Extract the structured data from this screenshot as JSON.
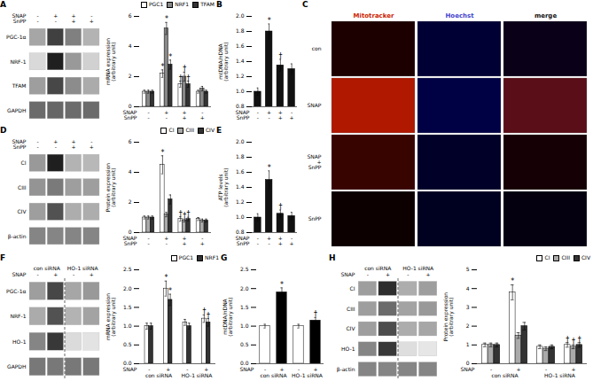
{
  "chart_data": [
    {
      "type": "gel",
      "title": "A",
      "rows": [
        "PGC-1α",
        "NRF-1",
        "TFAM",
        "GAPDH"
      ],
      "lanes": [
        {
          "name": "SNAP",
          "labels": [
            "-",
            "+",
            "+",
            "-"
          ]
        },
        {
          "name": "SnPP",
          "labels": [
            "-",
            "-",
            "+",
            "+"
          ]
        }
      ],
      "intensity": [
        [
          0.35,
          0.75,
          0.5,
          0.3
        ],
        [
          0.15,
          0.88,
          0.4,
          0.18
        ],
        [
          0.38,
          0.72,
          0.45,
          0.33
        ],
        [
          0.58,
          0.6,
          0.58,
          0.58
        ]
      ]
    },
    {
      "type": "bar",
      "x_label_rows": [
        {
          "name": "SNAP",
          "labels": [
            "-",
            "+",
            "+",
            "-"
          ]
        },
        {
          "name": "SnPP",
          "labels": [
            "-",
            "-",
            "+",
            "+"
          ]
        }
      ],
      "ylabel": "mRNA expression\n(arbitrary unit)",
      "ylim": [
        0,
        6
      ],
      "yticks": [
        0,
        2,
        4,
        6
      ],
      "legend": "upper right",
      "series": [
        {
          "name": "PGC1",
          "color": "#ffffff",
          "values": [
            1,
            2.2,
            1.5,
            1
          ],
          "errors": [
            0.1,
            0.25,
            0.2,
            0.1
          ],
          "annotations": [
            null,
            "*",
            "†",
            null
          ]
        },
        {
          "name": "NRF1",
          "color": "#888888",
          "values": [
            1,
            5.2,
            2,
            1.2
          ],
          "errors": [
            0.1,
            0.4,
            0.3,
            0.15
          ],
          "annotations": [
            null,
            "*",
            "†",
            null
          ]
        },
        {
          "name": "TFAM",
          "color": "#333333",
          "values": [
            1,
            2.8,
            1.5,
            1
          ],
          "errors": [
            0.1,
            0.3,
            0.2,
            0.1
          ],
          "annotations": [
            null,
            "*",
            "†",
            null
          ]
        }
      ]
    },
    {
      "type": "bar",
      "title": "B",
      "x_label_rows": [
        {
          "name": "SNAP",
          "labels": [
            "-",
            "+",
            "+",
            "-"
          ]
        },
        {
          "name": "SnPP",
          "labels": [
            "-",
            "-",
            "+",
            "+"
          ]
        }
      ],
      "ylabel": "mtDNA/nDNA\n(arbitrary unit)",
      "ylim": [
        0.8,
        2
      ],
      "yticks": [
        0.8,
        {
          "value": 1,
          "label": "1.0"
        },
        1.2,
        1.4,
        1.6,
        1.8,
        {
          "value": 2,
          "label": "2.0"
        }
      ],
      "series": [
        {
          "color": "#111111",
          "values": [
            1,
            1.8,
            1.35,
            1.3
          ],
          "errors": [
            0.05,
            0.1,
            0.08,
            0.07
          ],
          "annotations": [
            null,
            "*",
            "†",
            null
          ]
        }
      ]
    },
    {
      "type": "image_grid",
      "title": "C",
      "columns": [
        "Mitotracker",
        "Hoechst",
        "merge"
      ],
      "column_colors": [
        "#cc2200",
        "#4444cc",
        "#111111"
      ],
      "rows": [
        "con",
        "SNAP",
        "SNAP\n+\nSnPP",
        "SnPP"
      ],
      "cell_colors": [
        [
          "#1c0000",
          "#000035",
          "#0a0018"
        ],
        [
          "#b01800",
          "#000045",
          "#5a0e18"
        ],
        [
          "#380400",
          "#000028",
          "#150005"
        ],
        [
          "#0c0000",
          "#000020",
          "#040010"
        ]
      ]
    },
    {
      "type": "gel",
      "title": "D",
      "rows": [
        "CI",
        "CIII",
        "CIV",
        "β-actin"
      ],
      "lanes": [
        {
          "name": "SNAP",
          "labels": [
            "-",
            "+",
            "+",
            "-"
          ]
        },
        {
          "name": "SnPP",
          "labels": [
            "-",
            "-",
            "+",
            "+"
          ]
        }
      ],
      "intensity": [
        [
          0.4,
          0.88,
          0.3,
          0.28
        ],
        [
          0.42,
          0.52,
          0.38,
          0.38
        ],
        [
          0.38,
          0.68,
          0.32,
          0.32
        ],
        [
          0.48,
          0.48,
          0.48,
          0.48
        ]
      ]
    },
    {
      "type": "bar",
      "x_label_rows": [
        {
          "name": "SNAP",
          "labels": [
            "-",
            "+",
            "+",
            "-"
          ]
        },
        {
          "name": "SnPP",
          "labels": [
            "-",
            "-",
            "+",
            "+"
          ]
        }
      ],
      "ylabel": "Protein expression\n(arbitrary unit)",
      "ylim": [
        0,
        6
      ],
      "yticks": [
        0,
        2,
        4,
        6
      ],
      "legend": "upper right",
      "series": [
        {
          "name": "CI",
          "color": "#ffffff",
          "values": [
            1,
            4.5,
            0.9,
            0.9
          ],
          "errors": [
            0.1,
            0.6,
            0.15,
            0.1
          ],
          "annotations": [
            null,
            "*",
            "†",
            null
          ]
        },
        {
          "name": "CIII",
          "color": "#aaaaaa",
          "values": [
            1,
            1.2,
            0.8,
            0.8
          ],
          "errors": [
            0.1,
            0.15,
            0.1,
            0.1
          ],
          "annotations": [
            null,
            null,
            "†",
            null
          ]
        },
        {
          "name": "CIV",
          "color": "#333333",
          "values": [
            1,
            2.2,
            0.9,
            0.8
          ],
          "errors": [
            0.1,
            0.3,
            0.12,
            0.1
          ],
          "annotations": [
            null,
            null,
            "†",
            null
          ]
        }
      ]
    },
    {
      "type": "bar",
      "title": "E",
      "x_label_rows": [
        {
          "name": "SNAP",
          "labels": [
            "-",
            "+",
            "+",
            "-"
          ]
        },
        {
          "name": "SnPP",
          "labels": [
            "-",
            "-",
            "+",
            "+"
          ]
        }
      ],
      "ylabel": "ATP levels\n(arbitrary unit)",
      "ylim": [
        0.8,
        2
      ],
      "yticks": [
        0.8,
        {
          "value": 1,
          "label": "1.0"
        },
        1.2,
        1.4,
        1.6,
        1.8,
        {
          "value": 2,
          "label": "2.0"
        }
      ],
      "series": [
        {
          "color": "#111111",
          "values": [
            1,
            1.5,
            1.05,
            1.02
          ],
          "errors": [
            0.05,
            0.12,
            0.05,
            0.05
          ],
          "annotations": [
            null,
            "*",
            "†",
            null
          ]
        }
      ]
    },
    {
      "type": "gel",
      "title": "F",
      "rows": [
        "PGC-1α",
        "NRF-1",
        "HO-1",
        "GAPDH"
      ],
      "groups": [
        "con siRNA",
        "HO-1 siRNA"
      ],
      "lanes": [
        {
          "name": "SNAP",
          "labels": [
            "-",
            "+",
            "-",
            "+"
          ]
        }
      ],
      "intensity": [
        [
          0.38,
          0.72,
          0.35,
          0.4
        ],
        [
          0.33,
          0.68,
          0.3,
          0.36
        ],
        [
          0.48,
          0.78,
          0.14,
          0.11
        ],
        [
          0.53,
          0.53,
          0.53,
          0.53
        ]
      ]
    },
    {
      "type": "bar",
      "x_label_rows": [
        {
          "name": "SNAP",
          "labels": [
            "-",
            "+",
            "-",
            "+"
          ]
        }
      ],
      "groups": [
        "con siRNA",
        "HO-1 siRNA"
      ],
      "ylabel": "mRNA expression\n(arbitrary unit)",
      "ylim": [
        0,
        2.5
      ],
      "yticks": [
        {
          "value": 0,
          "label": "0.0"
        },
        0.5,
        {
          "value": 1,
          "label": "1.0"
        },
        1.5,
        {
          "value": 2,
          "label": "2.0"
        },
        2.5
      ],
      "legend": "upper right",
      "series": [
        {
          "name": "PGC1",
          "color": "#ffffff",
          "values": [
            1,
            2,
            1.1,
            1.2
          ],
          "errors": [
            0.08,
            0.2,
            0.08,
            0.1
          ],
          "annotations": [
            null,
            "*",
            null,
            "†"
          ]
        },
        {
          "name": "NRF1",
          "color": "#333333",
          "values": [
            1,
            1.7,
            1,
            1.1
          ],
          "errors": [
            0.08,
            0.15,
            0.08,
            0.1
          ],
          "annotations": [
            null,
            "*",
            null,
            "†"
          ]
        }
      ]
    },
    {
      "type": "bar",
      "title": "G",
      "x_label_rows": [
        {
          "name": "SNAP",
          "labels": [
            "-",
            "+",
            "-",
            "+"
          ]
        }
      ],
      "groups": [
        "con siRNA",
        "HO-1 siRNA"
      ],
      "ylabel": "mtDNA/nDNA\n(arbitrary unit)",
      "ylim": [
        0,
        2.5
      ],
      "yticks": [
        {
          "value": 0,
          "label": "0.0"
        },
        0.5,
        {
          "value": 1,
          "label": "1.0"
        },
        1.5,
        {
          "value": 2,
          "label": "2.0"
        },
        2.5
      ],
      "series": [
        {
          "colors": [
            "#ffffff",
            "#000000",
            "#ffffff",
            "#000000"
          ],
          "values": [
            1,
            1.9,
            1,
            1.15
          ],
          "errors": [
            0.05,
            0.12,
            0.05,
            0.08
          ],
          "annotations": [
            null,
            "*",
            null,
            "†"
          ]
        }
      ]
    },
    {
      "type": "gel",
      "title": "H",
      "rows": [
        "CI",
        "CIII",
        "CIV",
        "HO-1",
        "β-actin"
      ],
      "groups": [
        "con siRNA",
        "HO-1 siRNA"
      ],
      "lanes": [
        {
          "name": "SNAP",
          "labels": [
            "-",
            "+",
            "-",
            "+"
          ]
        }
      ],
      "intensity": [
        [
          0.38,
          0.82,
          0.32,
          0.38
        ],
        [
          0.38,
          0.58,
          0.36,
          0.4
        ],
        [
          0.38,
          0.7,
          0.32,
          0.35
        ],
        [
          0.48,
          0.78,
          0.13,
          0.1
        ],
        [
          0.48,
          0.48,
          0.48,
          0.48
        ]
      ]
    },
    {
      "type": "bar",
      "x_label_rows": [
        {
          "name": "SNAP",
          "labels": [
            "-",
            "+",
            "-",
            "+"
          ]
        }
      ],
      "groups": [
        "con siRNA",
        "HO-1 siRNA"
      ],
      "ylabel": "Protein expression\n(arbitrary unit)",
      "ylim": [
        0,
        5
      ],
      "yticks": [
        0,
        1,
        2,
        3,
        4,
        5
      ],
      "legend": "upper right",
      "series": [
        {
          "name": "CI",
          "color": "#ffffff",
          "values": [
            1,
            3.8,
            0.9,
            1
          ],
          "errors": [
            0.1,
            0.4,
            0.1,
            0.12
          ],
          "annotations": [
            null,
            "*",
            null,
            "†"
          ]
        },
        {
          "name": "CIII",
          "color": "#aaaaaa",
          "values": [
            1,
            1.5,
            0.8,
            0.9
          ],
          "errors": [
            0.1,
            0.15,
            0.1,
            0.1
          ],
          "annotations": [
            null,
            null,
            null,
            "†"
          ]
        },
        {
          "name": "CIV",
          "color": "#333333",
          "values": [
            1,
            2,
            0.9,
            1
          ],
          "errors": [
            0.1,
            0.2,
            0.1,
            0.12
          ],
          "annotations": [
            null,
            null,
            null,
            "†"
          ]
        }
      ]
    }
  ]
}
